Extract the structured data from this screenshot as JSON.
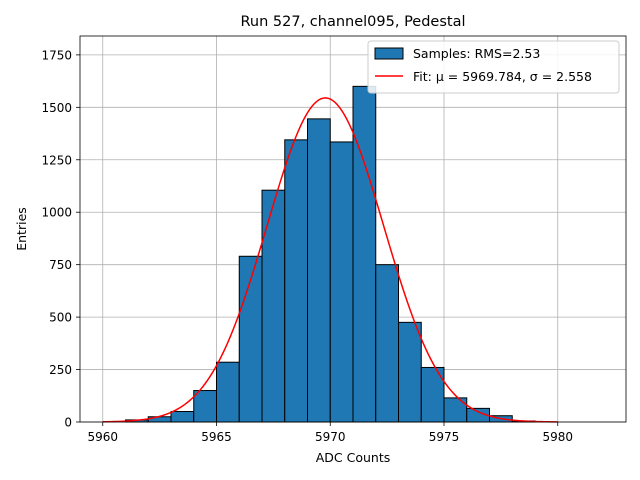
{
  "chart_data": {
    "type": "bar",
    "title": "Run 527, channel095, Pedestal",
    "xlabel": "ADC Counts",
    "ylabel": "Entries",
    "xlim": [
      5959,
      5983
    ],
    "ylim": [
      0,
      1840
    ],
    "xticks": [
      5960,
      5965,
      5970,
      5975,
      5980
    ],
    "yticks": [
      0,
      250,
      500,
      750,
      1000,
      1250,
      1500,
      1750
    ],
    "grid": true,
    "legend_position": "top-right",
    "bin_width": 1,
    "bins": [
      {
        "x": 5961,
        "value": 10
      },
      {
        "x": 5962,
        "value": 25
      },
      {
        "x": 5963,
        "value": 50
      },
      {
        "x": 5964,
        "value": 150
      },
      {
        "x": 5965,
        "value": 285
      },
      {
        "x": 5966,
        "value": 790
      },
      {
        "x": 5967,
        "value": 1105
      },
      {
        "x": 5968,
        "value": 1345
      },
      {
        "x": 5969,
        "value": 1445
      },
      {
        "x": 5970,
        "value": 1335
      },
      {
        "x": 5971,
        "value": 1600
      },
      {
        "x": 5972,
        "value": 750
      },
      {
        "x": 5973,
        "value": 475
      },
      {
        "x": 5974,
        "value": 260
      },
      {
        "x": 5975,
        "value": 115
      },
      {
        "x": 5976,
        "value": 65
      },
      {
        "x": 5977,
        "value": 30
      },
      {
        "x": 5978,
        "value": 5
      }
    ],
    "fit": {
      "mu": 5969.784,
      "sigma": 2.558,
      "amplitude": 1545,
      "x_range": [
        5960,
        5980
      ]
    },
    "legend": {
      "histogram": "Samples: RMS=2.53",
      "fit": "Fit: μ = 5969.784, σ = 2.558"
    },
    "colors": {
      "bar_fill": "#1f77b4",
      "bar_edge": "#000000",
      "fit_line": "#ff0000",
      "grid": "#b0b0b0"
    }
  }
}
